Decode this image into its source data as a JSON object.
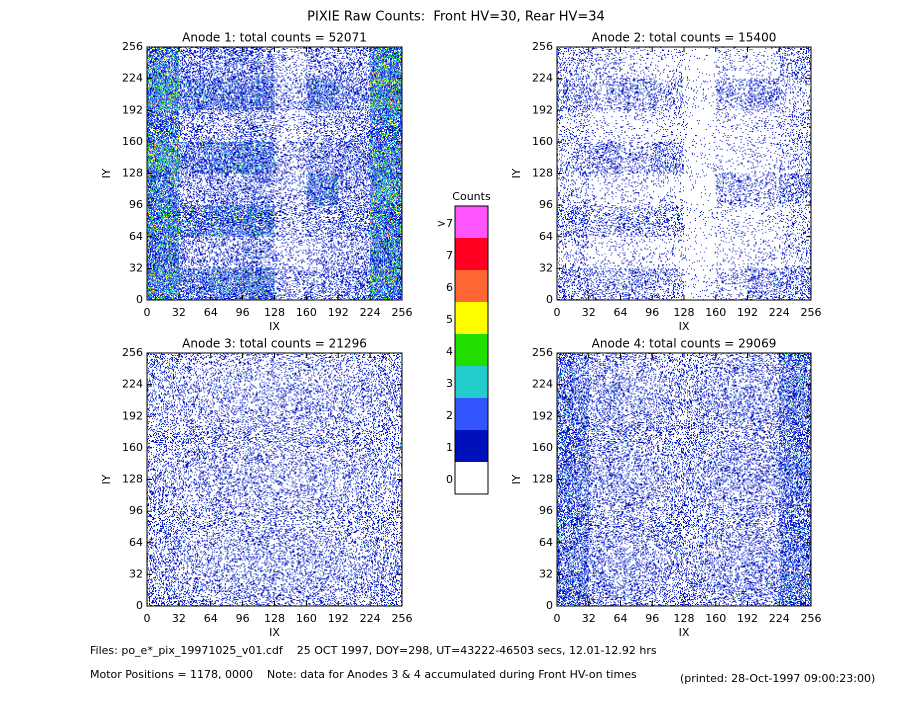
{
  "title": "PIXIE Raw Counts:  Front HV=30, Rear HV=34",
  "chart_data": [
    {
      "type": "heatmap",
      "title": "Anode 1: total counts = 52071",
      "x_label": "IX",
      "y_label": "IY",
      "xlim": [
        0,
        256
      ],
      "ylim": [
        0,
        256
      ],
      "xticks": [
        0,
        32,
        64,
        96,
        128,
        160,
        192,
        224,
        256
      ],
      "yticks": [
        0,
        32,
        64,
        96,
        128,
        160,
        192,
        224,
        256
      ],
      "values": [
        [
          2.0,
          1.0,
          1.2,
          1.3,
          0.3,
          0.5,
          0.6,
          2.0
        ],
        [
          1.5,
          0.4,
          0.4,
          0.5,
          0.2,
          0.3,
          0.4,
          1.6
        ],
        [
          2.0,
          1.0,
          1.2,
          1.2,
          0.3,
          0.4,
          0.5,
          1.8
        ],
        [
          1.5,
          0.4,
          0.5,
          0.5,
          0.3,
          1.2,
          0.5,
          2.0
        ],
        [
          2.2,
          0.9,
          1.2,
          1.2,
          0.3,
          0.5,
          0.6,
          1.8
        ],
        [
          1.4,
          0.4,
          0.4,
          0.4,
          0.2,
          0.3,
          0.4,
          1.5
        ],
        [
          2.2,
          1.0,
          1.0,
          1.0,
          0.3,
          1.0,
          0.6,
          2.2
        ],
        [
          1.6,
          0.5,
          0.6,
          0.6,
          0.2,
          0.4,
          0.4,
          1.8
        ]
      ]
    },
    {
      "type": "heatmap",
      "title": "Anode 2: total counts = 15400",
      "x_label": "IX",
      "y_label": "IY",
      "xlim": [
        0,
        256
      ],
      "ylim": [
        0,
        256
      ],
      "xticks": [
        0,
        32,
        64,
        96,
        128,
        160,
        192,
        224,
        256
      ],
      "yticks": [
        0,
        32,
        64,
        96,
        128,
        160,
        192,
        224,
        256
      ],
      "values": [
        [
          0.4,
          0.3,
          0.4,
          0.3,
          0.05,
          0.2,
          0.4,
          0.4
        ],
        [
          0.2,
          0.1,
          0.1,
          0.1,
          0.03,
          0.08,
          0.1,
          0.2
        ],
        [
          0.4,
          0.3,
          0.4,
          0.3,
          0.05,
          0.1,
          0.1,
          0.2
        ],
        [
          0.2,
          0.1,
          0.1,
          0.1,
          0.03,
          0.3,
          0.2,
          0.4
        ],
        [
          0.3,
          0.4,
          0.3,
          0.4,
          0.05,
          0.1,
          0.1,
          0.2
        ],
        [
          0.2,
          0.1,
          0.1,
          0.1,
          0.03,
          0.08,
          0.1,
          0.2
        ],
        [
          0.4,
          0.3,
          0.4,
          0.3,
          0.05,
          0.3,
          0.4,
          0.2
        ],
        [
          0.3,
          0.2,
          0.1,
          0.1,
          0.03,
          0.1,
          0.1,
          0.3
        ]
      ]
    },
    {
      "type": "heatmap",
      "title": "Anode 3: total counts = 21296",
      "x_label": "IX",
      "y_label": "IY",
      "xlim": [
        0,
        256
      ],
      "ylim": [
        0,
        256
      ],
      "xticks": [
        0,
        32,
        64,
        96,
        128,
        160,
        192,
        224,
        256
      ],
      "yticks": [
        0,
        32,
        64,
        96,
        128,
        160,
        192,
        224,
        256
      ],
      "values": [
        [
          0.4,
          0.35,
          0.3,
          0.35,
          0.3,
          0.35,
          0.3,
          0.4
        ],
        [
          0.35,
          0.3,
          0.3,
          0.3,
          0.3,
          0.3,
          0.3,
          0.35
        ],
        [
          0.35,
          0.3,
          0.3,
          0.3,
          0.3,
          0.3,
          0.3,
          0.35
        ],
        [
          0.3,
          0.3,
          0.3,
          0.3,
          0.3,
          0.3,
          0.3,
          0.3
        ],
        [
          0.3,
          0.3,
          0.3,
          0.3,
          0.3,
          0.3,
          0.3,
          0.3
        ],
        [
          0.3,
          0.3,
          0.3,
          0.3,
          0.3,
          0.3,
          0.3,
          0.3
        ],
        [
          0.35,
          0.3,
          0.3,
          0.3,
          0.3,
          0.3,
          0.3,
          0.35
        ],
        [
          0.3,
          0.25,
          0.25,
          0.25,
          0.25,
          0.25,
          0.25,
          0.3
        ]
      ]
    },
    {
      "type": "heatmap",
      "title": "Anode 4: total counts = 29069",
      "x_label": "IX",
      "y_label": "IY",
      "xlim": [
        0,
        256
      ],
      "ylim": [
        0,
        256
      ],
      "xticks": [
        0,
        32,
        64,
        96,
        128,
        160,
        192,
        224,
        256
      ],
      "yticks": [
        0,
        32,
        64,
        96,
        128,
        160,
        192,
        224,
        256
      ],
      "values": [
        [
          0.9,
          0.45,
          0.4,
          0.4,
          0.4,
          0.4,
          0.45,
          0.9
        ],
        [
          0.8,
          0.4,
          0.35,
          0.35,
          0.35,
          0.35,
          0.4,
          0.8
        ],
        [
          0.8,
          0.4,
          0.35,
          0.35,
          0.35,
          0.35,
          0.4,
          0.8
        ],
        [
          0.8,
          0.4,
          0.35,
          0.35,
          0.35,
          0.35,
          0.4,
          0.8
        ],
        [
          0.8,
          0.4,
          0.35,
          0.35,
          0.35,
          0.35,
          0.4,
          0.8
        ],
        [
          0.8,
          0.4,
          0.35,
          0.35,
          0.35,
          0.35,
          0.4,
          0.8
        ],
        [
          0.8,
          0.4,
          0.35,
          0.35,
          0.35,
          0.35,
          0.4,
          0.9
        ],
        [
          0.7,
          0.35,
          0.3,
          0.3,
          0.3,
          0.3,
          0.35,
          0.9
        ]
      ]
    },
    {
      "type": "colorbar",
      "title": "Counts",
      "categories": [
        ">7",
        "7",
        "6",
        "5",
        "4",
        "3",
        "2",
        "1",
        "0"
      ],
      "colors": [
        "#ff55ff",
        "#ff0022",
        "#ff6633",
        "#ffff00",
        "#22dd00",
        "#22cccc",
        "#3355ff",
        "#0011bb",
        "#ffffff"
      ]
    }
  ],
  "footer": {
    "files": "Files: po_e*_pix_19971025_v01.cdf    25 OCT 1997, DOY=298, UT=43222-46503 secs, 12.01-12.92 hrs",
    "motor": "Motor Positions = 1178, 0000    Note: data for Anodes 3 & 4 accumulated during Front HV-on times",
    "printed": "(printed: 28-Oct-1997 09:00:23:00)"
  }
}
